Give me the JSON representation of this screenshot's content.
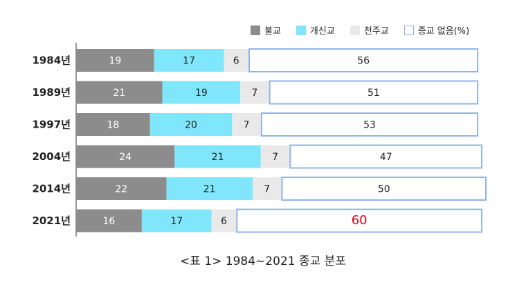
{
  "chart_data": {
    "type": "bar",
    "orientation": "horizontal",
    "stacked": true,
    "caption": "<표 1> 1984~2021 종교 분포",
    "categories": [
      "1984년",
      "1989년",
      "1997년",
      "2004년",
      "2014년",
      "2021년"
    ],
    "series": [
      {
        "name": "불교",
        "color": "#8c8c8c",
        "label_color": "#ffffff",
        "values": [
          19,
          21,
          18,
          24,
          22,
          16
        ]
      },
      {
        "name": "개신교",
        "color": "#7fe6fb",
        "label_color": "#222222",
        "values": [
          17,
          19,
          20,
          21,
          21,
          17
        ]
      },
      {
        "name": "천주교",
        "color": "#e9e9e9",
        "label_color": "#222222",
        "values": [
          6,
          7,
          7,
          7,
          7,
          6
        ]
      },
      {
        "name": "종교 없음(%)",
        "color": "#ffffff",
        "border_color": "#8fb4e8",
        "label_color": "#222222",
        "values": [
          56,
          51,
          53,
          47,
          50,
          60
        ]
      }
    ],
    "highlight": {
      "category": "2021년",
      "series": "종교 없음(%)",
      "color": "#e0001a"
    },
    "legend_position": "top-right",
    "grid": false
  }
}
